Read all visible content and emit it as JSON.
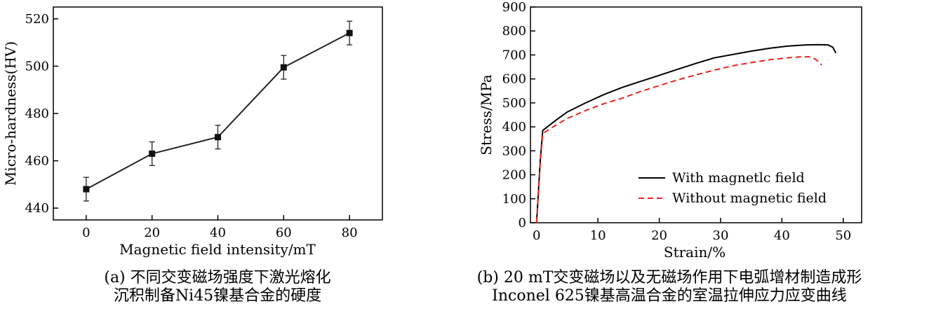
{
  "chart_data": [
    {
      "type": "line",
      "xlabel": "Magnetic field intensity/mT",
      "ylabel": "Micro-hardness(HV)",
      "x": [
        0,
        20,
        40,
        60,
        80
      ],
      "values": [
        448,
        463,
        470,
        499.5,
        514
      ],
      "errors": [
        5,
        5,
        5,
        5,
        5
      ],
      "xlim": [
        -10,
        90
      ],
      "ylim": [
        435,
        525
      ],
      "xticks": [
        "0",
        "20",
        "40",
        "60",
        "80"
      ],
      "yticks": [
        "440",
        "460",
        "480",
        "500",
        "520"
      ],
      "marker": "square",
      "caption": [
        "(a) 不同交变磁场强度下激光熔化",
        "沉积制备Ni45镍基合金的硬度"
      ]
    },
    {
      "type": "line",
      "xlabel": "Strain/%",
      "ylabel": "Stress/MPa",
      "xlim": [
        -1,
        53
      ],
      "ylim": [
        0,
        900
      ],
      "xticks": [
        "0",
        "10",
        "20",
        "30",
        "40",
        "50"
      ],
      "yticks": [
        "0",
        "100",
        "200",
        "300",
        "400",
        "500",
        "600",
        "700",
        "800",
        "900"
      ],
      "legend": "bottom-right",
      "series": [
        {
          "name": "With magnetlc field",
          "color": "#000000",
          "style": "solid",
          "x": [
            0,
            0.3,
            0.6,
            1.0,
            3,
            5,
            8,
            11,
            14,
            17,
            20,
            23,
            26,
            29,
            32,
            35,
            38,
            41,
            44,
            46,
            47.5,
            48.3,
            48.8
          ],
          "y": [
            0,
            130,
            260,
            385,
            425,
            462,
            500,
            535,
            565,
            590,
            615,
            640,
            665,
            688,
            702,
            716,
            728,
            737,
            742,
            743,
            742,
            732,
            708
          ]
        },
        {
          "name": "Without magnetic field",
          "color": "#e8231f",
          "style": "dashed",
          "x": [
            0,
            0.3,
            0.6,
            1.0,
            3,
            5,
            8,
            11,
            14,
            17,
            20,
            23,
            26,
            29,
            32,
            35,
            38,
            41,
            43,
            44.5,
            45.5,
            46.5
          ],
          "y": [
            0,
            125,
            250,
            372,
            405,
            435,
            468,
            497,
            520,
            548,
            572,
            596,
            617,
            637,
            655,
            668,
            680,
            688,
            692,
            692,
            682,
            658
          ]
        }
      ],
      "caption": [
        "(b) 20 mT交变磁场以及无磁场作用下电弧增材制造成形",
        "Inconel 625镍基高温合金的室温拉伸应力应变曲线"
      ]
    }
  ]
}
